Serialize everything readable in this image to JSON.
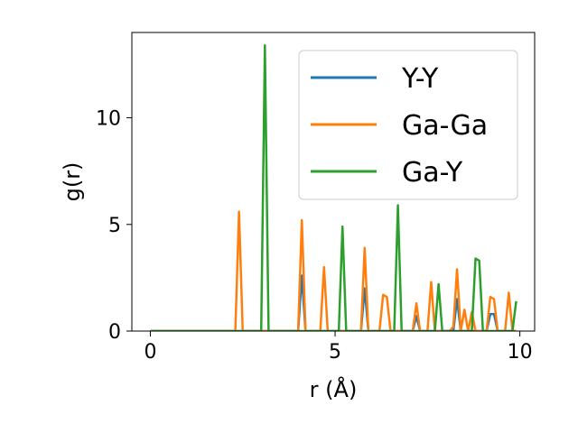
{
  "chart_data": {
    "type": "line",
    "title": "",
    "xlabel": "r (Å)",
    "ylabel": "g(r)",
    "xlim": [
      -0.5,
      10.4
    ],
    "ylim": [
      0,
      14
    ],
    "xticks": [
      0,
      5,
      10
    ],
    "yticks": [
      0,
      5,
      10
    ],
    "grid": false,
    "legend_position": "top-right",
    "series": [
      {
        "name": "Y-Y",
        "color": "#1f77b4",
        "x": [
          0,
          3.9,
          4.0,
          4.1,
          4.2,
          5.6,
          5.7,
          5.8,
          5.9,
          7.1,
          7.2,
          7.3,
          8.2,
          8.3,
          8.4,
          9.1,
          9.2,
          9.3,
          9.4,
          9.9
        ],
        "y": [
          0,
          0,
          0,
          2.6,
          0,
          0,
          0,
          2.0,
          0,
          0,
          0.7,
          0,
          0,
          1.5,
          0,
          0,
          0.8,
          0.8,
          0,
          0
        ]
      },
      {
        "name": "Ga-Ga",
        "color": "#ff7f0e",
        "x": [
          0,
          2.3,
          2.4,
          2.5,
          3.9,
          4.0,
          4.1,
          4.2,
          4.6,
          4.7,
          4.8,
          5.6,
          5.7,
          5.8,
          5.9,
          6.2,
          6.3,
          6.4,
          6.5,
          7.1,
          7.2,
          7.3,
          7.5,
          7.6,
          7.7,
          8.1,
          8.2,
          8.3,
          8.4,
          8.5,
          8.6,
          8.7,
          8.8,
          9.1,
          9.2,
          9.3,
          9.4,
          9.6,
          9.7,
          9.8,
          9.9
        ],
        "y": [
          0,
          0,
          5.6,
          0,
          0,
          0,
          5.2,
          0,
          0,
          3.0,
          0,
          0,
          0,
          3.9,
          0,
          0,
          1.7,
          1.6,
          0,
          0,
          1.3,
          0,
          0,
          2.3,
          0,
          0,
          0.2,
          2.9,
          0,
          1.0,
          0,
          0.9,
          0,
          0,
          1.6,
          1.5,
          0,
          0,
          1.8,
          0,
          0
        ]
      },
      {
        "name": "Ga-Y",
        "color": "#2ca02c",
        "x": [
          0,
          3.0,
          3.1,
          3.2,
          5.1,
          5.2,
          5.3,
          6.6,
          6.7,
          6.8,
          7.7,
          7.8,
          7.9,
          8.7,
          8.8,
          8.9,
          9.0,
          9.8,
          9.9
        ],
        "y": [
          0,
          0,
          13.4,
          0,
          0,
          4.9,
          0,
          0,
          5.9,
          0,
          0,
          2.2,
          0,
          0,
          3.4,
          3.3,
          0,
          0,
          1.4
        ]
      }
    ]
  }
}
